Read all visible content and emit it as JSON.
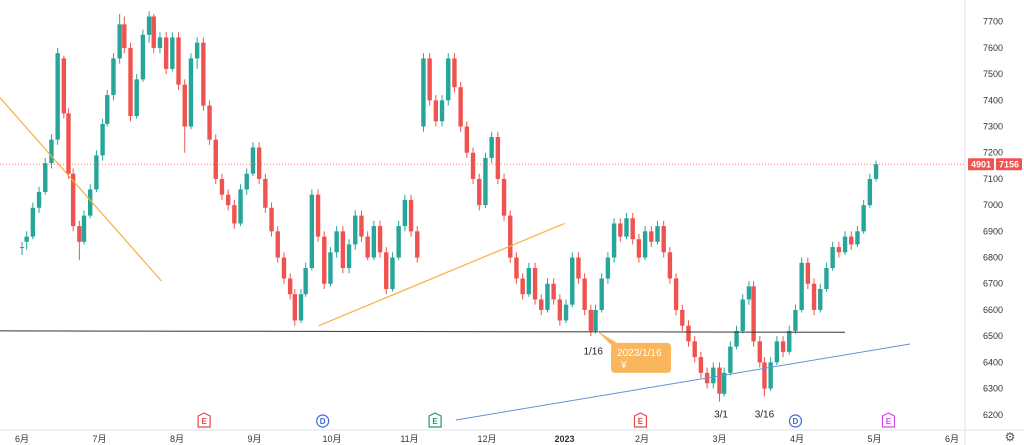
{
  "chart_data": {
    "type": "candlestick",
    "y_ticks": [
      "7700",
      "7600",
      "7500",
      "7400",
      "7300",
      "7200",
      "7100",
      "7000",
      "6900",
      "6800",
      "6700",
      "6600",
      "6500",
      "6400",
      "6300",
      "6200"
    ],
    "x_ticks": [
      {
        "label": "6月",
        "v": 0
      },
      {
        "label": "7月",
        "v": 1
      },
      {
        "label": "8月",
        "v": 2
      },
      {
        "label": "9月",
        "v": 3
      },
      {
        "label": "10月",
        "v": 4
      },
      {
        "label": "11月",
        "v": 5
      },
      {
        "label": "12月",
        "v": 6
      },
      {
        "label": "2023",
        "v": 7
      },
      {
        "label": "2月",
        "v": 8
      },
      {
        "label": "3月",
        "v": 9
      },
      {
        "label": "4月",
        "v": 10
      },
      {
        "label": "5月",
        "v": 11
      },
      {
        "label": "6月",
        "v": 12
      }
    ],
    "ylim": [
      6180,
      7760
    ],
    "current_price_labels": [
      "4901",
      "7156"
    ],
    "current_price": 7156,
    "candles": [
      [
        0,
        6840,
        6840,
        6860,
        6810
      ],
      [
        0.06,
        6860,
        6880,
        6900,
        6830
      ],
      [
        0.14,
        6880,
        6990,
        7010,
        6870
      ],
      [
        0.22,
        6990,
        7050,
        7070,
        6970
      ],
      [
        0.3,
        7050,
        7160,
        7180,
        7040
      ],
      [
        0.38,
        7160,
        7250,
        7270,
        7140
      ],
      [
        0.46,
        7250,
        7580,
        7600,
        7230
      ],
      [
        0.54,
        7560,
        7350,
        7570,
        7330
      ],
      [
        0.6,
        7350,
        7120,
        7370,
        7100
      ],
      [
        0.66,
        7120,
        6920,
        7140,
        6900
      ],
      [
        0.74,
        6920,
        6860,
        6940,
        6790
      ],
      [
        0.8,
        6860,
        6960,
        6980,
        6850
      ],
      [
        0.88,
        6960,
        7060,
        7080,
        6950
      ],
      [
        0.96,
        7060,
        7190,
        7210,
        7050
      ],
      [
        1.04,
        7190,
        7310,
        7330,
        7170
      ],
      [
        1.1,
        7310,
        7420,
        7440,
        7300
      ],
      [
        1.18,
        7420,
        7560,
        7580,
        7400
      ],
      [
        1.26,
        7560,
        7690,
        7730,
        7540
      ],
      [
        1.32,
        7690,
        7600,
        7720,
        7580
      ],
      [
        1.4,
        7600,
        7340,
        7620,
        7320
      ],
      [
        1.48,
        7340,
        7480,
        7500,
        7330
      ],
      [
        1.56,
        7480,
        7650,
        7670,
        7470
      ],
      [
        1.64,
        7650,
        7720,
        7740,
        7620
      ],
      [
        1.7,
        7720,
        7600,
        7730,
        7580
      ],
      [
        1.78,
        7600,
        7640,
        7660,
        7580
      ],
      [
        1.86,
        7640,
        7520,
        7660,
        7500
      ],
      [
        1.94,
        7520,
        7640,
        7660,
        7510
      ],
      [
        2.02,
        7640,
        7460,
        7660,
        7440
      ],
      [
        2.1,
        7460,
        7300,
        7480,
        7200
      ],
      [
        2.18,
        7300,
        7560,
        7580,
        7290
      ],
      [
        2.26,
        7560,
        7620,
        7640,
        7520
      ],
      [
        2.34,
        7620,
        7380,
        7640,
        7360
      ],
      [
        2.42,
        7380,
        7250,
        7400,
        7230
      ],
      [
        2.5,
        7250,
        7100,
        7270,
        7080
      ],
      [
        2.58,
        7100,
        7040,
        7120,
        7020
      ],
      [
        2.66,
        7040,
        7000,
        7060,
        6980
      ],
      [
        2.74,
        7000,
        6930,
        7020,
        6910
      ],
      [
        2.82,
        6930,
        7060,
        7080,
        6920
      ],
      [
        2.9,
        7060,
        7120,
        7140,
        7040
      ],
      [
        2.98,
        7120,
        7220,
        7240,
        7110
      ],
      [
        3.06,
        7220,
        7100,
        7240,
        7080
      ],
      [
        3.14,
        7100,
        6990,
        7120,
        6970
      ],
      [
        3.22,
        6990,
        6900,
        7010,
        6880
      ],
      [
        3.3,
        6900,
        6800,
        6920,
        6780
      ],
      [
        3.38,
        6800,
        6720,
        6820,
        6700
      ],
      [
        3.46,
        6720,
        6660,
        6740,
        6640
      ],
      [
        3.52,
        6660,
        6560,
        6680,
        6540
      ],
      [
        3.6,
        6560,
        6660,
        6680,
        6550
      ],
      [
        3.66,
        6660,
        6760,
        6780,
        6650
      ],
      [
        3.74,
        6760,
        7040,
        7060,
        6750
      ],
      [
        3.82,
        7040,
        6880,
        7060,
        6860
      ],
      [
        3.9,
        6880,
        6700,
        6900,
        6680
      ],
      [
        3.98,
        6700,
        6820,
        6840,
        6690
      ],
      [
        4.06,
        6820,
        6900,
        6920,
        6800
      ],
      [
        4.14,
        6900,
        6760,
        6920,
        6740
      ],
      [
        4.22,
        6760,
        6850,
        6870,
        6740
      ],
      [
        4.3,
        6850,
        6960,
        6980,
        6830
      ],
      [
        4.38,
        6960,
        6880,
        6980,
        6860
      ],
      [
        4.46,
        6880,
        6800,
        6900,
        6790
      ],
      [
        4.54,
        6800,
        6920,
        6940,
        6790
      ],
      [
        4.62,
        6920,
        6820,
        6940,
        6800
      ],
      [
        4.7,
        6820,
        6680,
        6840,
        6660
      ],
      [
        4.78,
        6680,
        6800,
        6820,
        6670
      ],
      [
        4.86,
        6800,
        6920,
        6940,
        6790
      ],
      [
        4.94,
        6920,
        7020,
        7040,
        6900
      ],
      [
        5.02,
        7020,
        6900,
        7040,
        6880
      ],
      [
        5.1,
        6900,
        6800,
        6920,
        6780
      ],
      [
        5.18,
        7300,
        7560,
        7580,
        7280
      ],
      [
        5.26,
        7560,
        7400,
        7580,
        7380
      ],
      [
        5.34,
        7400,
        7320,
        7420,
        7300
      ],
      [
        5.42,
        7320,
        7400,
        7420,
        7300
      ],
      [
        5.5,
        7400,
        7560,
        7580,
        7380
      ],
      [
        5.58,
        7560,
        7450,
        7580,
        7430
      ],
      [
        5.66,
        7450,
        7300,
        7470,
        7280
      ],
      [
        5.74,
        7300,
        7200,
        7320,
        7180
      ],
      [
        5.82,
        7200,
        7100,
        7220,
        7080
      ],
      [
        5.9,
        7100,
        7000,
        7120,
        6980
      ],
      [
        5.98,
        7000,
        7180,
        7200,
        6990
      ],
      [
        6.06,
        7180,
        7260,
        7280,
        7160
      ],
      [
        6.14,
        7260,
        7100,
        7280,
        7080
      ],
      [
        6.22,
        7100,
        6960,
        7120,
        6940
      ],
      [
        6.3,
        6960,
        6800,
        6980,
        6780
      ],
      [
        6.38,
        6800,
        6720,
        6820,
        6700
      ],
      [
        6.46,
        6720,
        6660,
        6740,
        6640
      ],
      [
        6.54,
        6660,
        6760,
        6780,
        6650
      ],
      [
        6.62,
        6760,
        6640,
        6780,
        6620
      ],
      [
        6.7,
        6640,
        6600,
        6660,
        6580
      ],
      [
        6.78,
        6600,
        6700,
        6720,
        6590
      ],
      [
        6.86,
        6700,
        6640,
        6720,
        6620
      ],
      [
        6.94,
        6640,
        6560,
        6660,
        6540
      ],
      [
        7.02,
        6560,
        6620,
        6640,
        6550
      ],
      [
        7.1,
        6620,
        6800,
        6820,
        6610
      ],
      [
        7.18,
        6800,
        6720,
        6820,
        6700
      ],
      [
        7.26,
        6720,
        6600,
        6740,
        6580
      ],
      [
        7.34,
        6600,
        6520,
        6620,
        6500
      ],
      [
        7.4,
        6520,
        6600,
        6620,
        6510
      ],
      [
        7.48,
        6600,
        6720,
        6740,
        6590
      ],
      [
        7.56,
        6720,
        6800,
        6820,
        6700
      ],
      [
        7.64,
        6800,
        6930,
        6950,
        6780
      ],
      [
        7.72,
        6930,
        6880,
        6950,
        6860
      ],
      [
        7.8,
        6880,
        6950,
        6970,
        6870
      ],
      [
        7.88,
        6950,
        6870,
        6970,
        6850
      ],
      [
        7.96,
        6870,
        6800,
        6890,
        6780
      ],
      [
        8.04,
        6800,
        6900,
        6920,
        6790
      ],
      [
        8.12,
        6900,
        6860,
        6920,
        6840
      ],
      [
        8.2,
        6860,
        6920,
        6940,
        6850
      ],
      [
        8.28,
        6920,
        6820,
        6940,
        6800
      ],
      [
        8.36,
        6820,
        6720,
        6840,
        6700
      ],
      [
        8.44,
        6720,
        6600,
        6740,
        6580
      ],
      [
        8.52,
        6600,
        6540,
        6620,
        6520
      ],
      [
        8.6,
        6540,
        6480,
        6560,
        6460
      ],
      [
        8.68,
        6480,
        6420,
        6500,
        6400
      ],
      [
        8.76,
        6420,
        6360,
        6440,
        6340
      ],
      [
        8.84,
        6360,
        6320,
        6380,
        6300
      ],
      [
        8.92,
        6320,
        6380,
        6400,
        6300
      ],
      [
        9.0,
        6380,
        6280,
        6400,
        6250
      ],
      [
        9.06,
        6280,
        6360,
        6380,
        6270
      ],
      [
        9.14,
        6360,
        6460,
        6480,
        6350
      ],
      [
        9.22,
        6460,
        6520,
        6540,
        6450
      ],
      [
        9.3,
        6520,
        6640,
        6660,
        6510
      ],
      [
        9.38,
        6640,
        6690,
        6710,
        6620
      ],
      [
        9.44,
        6690,
        6480,
        6710,
        6460
      ],
      [
        9.52,
        6480,
        6400,
        6500,
        6380
      ],
      [
        9.58,
        6400,
        6300,
        6420,
        6270
      ],
      [
        9.66,
        6300,
        6400,
        6420,
        6290
      ],
      [
        9.74,
        6400,
        6480,
        6500,
        6390
      ],
      [
        9.82,
        6480,
        6440,
        6500,
        6420
      ],
      [
        9.9,
        6440,
        6520,
        6540,
        6430
      ],
      [
        9.98,
        6520,
        6600,
        6620,
        6510
      ],
      [
        10.06,
        6600,
        6780,
        6800,
        6590
      ],
      [
        10.14,
        6780,
        6700,
        6800,
        6680
      ],
      [
        10.22,
        6700,
        6600,
        6720,
        6580
      ],
      [
        10.3,
        6600,
        6680,
        6700,
        6590
      ],
      [
        10.38,
        6680,
        6760,
        6780,
        6670
      ],
      [
        10.46,
        6760,
        6840,
        6860,
        6750
      ],
      [
        10.54,
        6840,
        6820,
        6860,
        6800
      ],
      [
        10.62,
        6820,
        6880,
        6900,
        6810
      ],
      [
        10.7,
        6880,
        6850,
        6900,
        6830
      ],
      [
        10.78,
        6850,
        6900,
        6920,
        6840
      ],
      [
        10.86,
        6900,
        7000,
        7020,
        6890
      ],
      [
        10.94,
        7000,
        7100,
        7120,
        6990
      ],
      [
        11.02,
        7100,
        7156,
        7170,
        7090
      ]
    ]
  },
  "events": [
    {
      "label": "E",
      "v": 2.35,
      "color": "#e54a4a"
    },
    {
      "label": "D",
      "v": 3.88,
      "color": "#3b6ad6"
    },
    {
      "label": "E",
      "v": 5.33,
      "color": "#1e9a6e"
    },
    {
      "label": "E",
      "v": 7.98,
      "color": "#e54a4a"
    },
    {
      "label": "D",
      "v": 9.98,
      "color": "#3b6ad6"
    },
    {
      "label": "E",
      "v": 11.18,
      "color": "#d946ef"
    }
  ],
  "annotations": {
    "date_1_16": "1/16",
    "date_3_1": "3/1",
    "date_3_16": "3/16",
    "note_text": "2023/1/16",
    "note_sub": "¥"
  },
  "colors": {
    "up": "#26a69a",
    "down": "#ef5350",
    "trend_orange": "#f5b041",
    "trend_blue": "#6b8fd6",
    "support_line": "#333333",
    "current_line": "#ef5350",
    "note_bg": "#f9b65c"
  }
}
